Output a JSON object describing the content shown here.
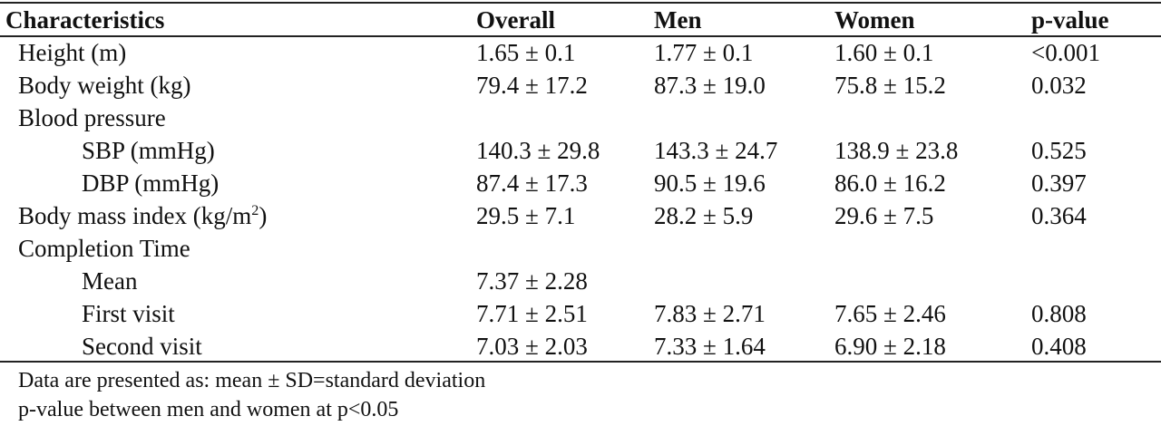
{
  "table": {
    "headers": [
      "Characteristics",
      "Overall",
      "Men",
      "Women",
      "p-value"
    ],
    "rows": [
      {
        "label": "Height (m)",
        "overall": "1.65 ± 0.1",
        "men": "1.77 ± 0.1",
        "women": "1.60 ± 0.1",
        "p": "<0.001"
      },
      {
        "label": "Body weight (kg)",
        "overall": "79.4 ± 17.2",
        "men": "87.3 ± 19.0",
        "women": "75.8 ± 15.2",
        "p": "0.032"
      },
      {
        "label": "Blood pressure",
        "overall": "",
        "men": "",
        "women": "",
        "p": ""
      },
      {
        "label": "SBP (mmHg)",
        "overall": "140.3 ± 29.8",
        "men": "143.3 ± 24.7",
        "women": "138.9 ± 23.8",
        "p": "0.525"
      },
      {
        "label": "DBP (mmHg)",
        "overall": "87.4 ± 17.3",
        "men": "90.5 ± 19.6",
        "women": "86.0 ± 16.2",
        "p": "0.397"
      },
      {
        "label": "Body mass index (kg/m",
        "label_sup": "2",
        "label_tail": ")",
        "overall": "29.5 ± 7.1",
        "men": "28.2 ± 5.9",
        "women": "29.6 ± 7.5",
        "p": "0.364"
      },
      {
        "label": "Completion Time",
        "overall": "",
        "men": "",
        "women": "",
        "p": ""
      },
      {
        "label": "Mean",
        "overall": "7.37 ± 2.28",
        "men": "",
        "women": "",
        "p": ""
      },
      {
        "label": "First visit",
        "overall": "7.71 ± 2.51",
        "men": "7.83 ± 2.71",
        "women": "7.65 ± 2.46",
        "p": "0.808"
      },
      {
        "label": "Second visit",
        "overall": "7.03 ± 2.03",
        "men": "7.33 ± 1.64",
        "women": "6.90 ± 2.18",
        "p": "0.408"
      }
    ]
  },
  "footnotes": [
    "Data are presented as: mean ± SD=standard deviation",
    "p-value between men and women at p<0.05"
  ]
}
